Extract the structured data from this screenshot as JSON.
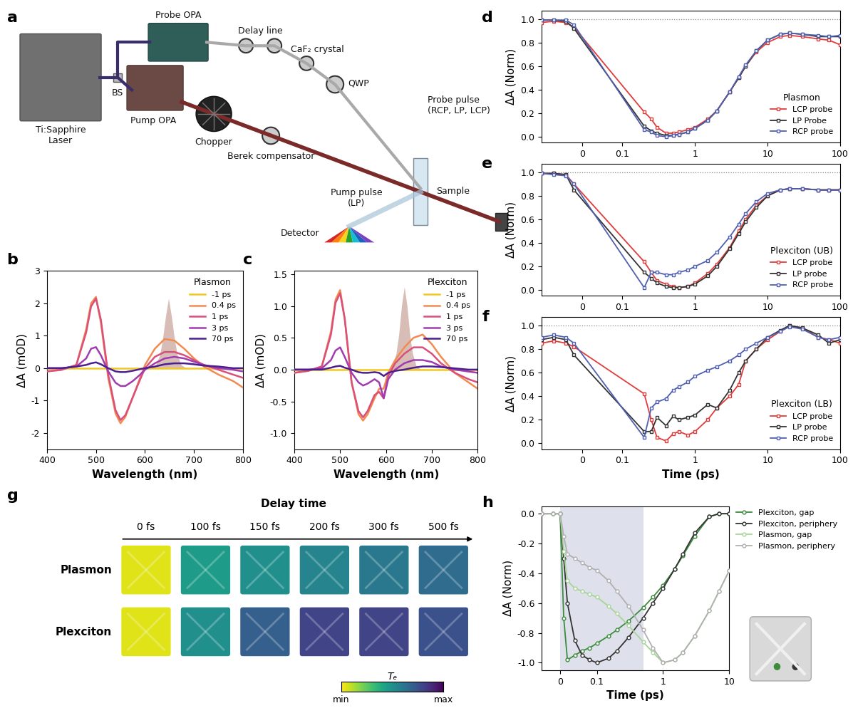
{
  "diagram": {
    "panel": "a",
    "nodes": [
      "Ti:Sapphire\nLaser",
      "BS",
      "Probe OPA",
      "Pump OPA",
      "Delay line",
      "CaF₂ crystal",
      "QWP",
      "Chopper",
      "Berek compensator",
      "Sample",
      "Detector",
      "Probe pulse\n(RCP, LP, LCP)",
      "Pump pulse\n(LP)"
    ]
  },
  "chart_data": [
    {
      "panel": "b",
      "type": "line",
      "title": "Plasmon",
      "xlabel": "Wavelength (nm)",
      "ylabel": "ΔA (mOD)",
      "x": [
        400,
        430,
        460,
        480,
        490,
        500,
        510,
        525,
        540,
        550,
        560,
        575,
        590,
        600,
        620,
        640,
        660,
        680,
        700,
        720,
        750,
        780,
        800
      ],
      "series": [
        {
          "name": "-1 ps",
          "color": "#f2c81e",
          "values": [
            0,
            0,
            0,
            0,
            0,
            0,
            0,
            0,
            0,
            0,
            0,
            0,
            0,
            0,
            0,
            0,
            0,
            0,
            0,
            0,
            0,
            0,
            0
          ]
        },
        {
          "name": "0.4 ps",
          "color": "#f28b50",
          "values": [
            -0.1,
            -0.05,
            0.1,
            1.2,
            2.0,
            2.2,
            1.4,
            -0.3,
            -1.4,
            -1.7,
            -1.5,
            -0.9,
            -0.3,
            0.1,
            0.6,
            0.9,
            0.85,
            0.6,
            0.3,
            0.05,
            -0.2,
            -0.4,
            -0.6
          ]
        },
        {
          "name": "1 ps",
          "color": "#d9507a",
          "values": [
            -0.1,
            -0.05,
            0.1,
            1.1,
            1.9,
            2.15,
            1.5,
            -0.2,
            -1.3,
            -1.6,
            -1.45,
            -0.9,
            -0.35,
            0.0,
            0.35,
            0.5,
            0.5,
            0.4,
            0.25,
            0.1,
            -0.05,
            -0.2,
            -0.3
          ]
        },
        {
          "name": "3 ps",
          "color": "#a03cb0",
          "values": [
            0,
            0,
            0.05,
            0.3,
            0.6,
            0.65,
            0.4,
            -0.1,
            -0.45,
            -0.55,
            -0.55,
            -0.4,
            -0.2,
            -0.05,
            0.15,
            0.3,
            0.35,
            0.3,
            0.2,
            0.1,
            0.0,
            -0.05,
            -0.1
          ]
        },
        {
          "name": "70 ps",
          "color": "#4b1f8f",
          "values": [
            0,
            0,
            0.05,
            0.1,
            0.15,
            0.18,
            0.12,
            0.0,
            -0.1,
            -0.12,
            -0.12,
            -0.08,
            -0.03,
            0.0,
            0.05,
            0.12,
            0.15,
            0.15,
            0.12,
            0.08,
            0.05,
            0.0,
            0.0
          ]
        }
      ],
      "pump": {
        "x": [
          612,
          622,
          630,
          636,
          642,
          648,
          654,
          660,
          666,
          674,
          684
        ],
        "values": [
          0,
          0.1,
          0.4,
          0.9,
          1.6,
          2.15,
          1.6,
          0.9,
          0.4,
          0.1,
          0
        ],
        "color": "#b8877a"
      },
      "xlim": [
        400,
        800
      ],
      "ylim": [
        -2.5,
        3
      ],
      "xticks": [
        400,
        500,
        600,
        700,
        800
      ],
      "yticks": [
        -2,
        -1,
        0,
        1,
        2,
        3
      ],
      "legend": "upper right"
    },
    {
      "panel": "c",
      "type": "line",
      "title": "Plexciton",
      "xlabel": "Wavelength (nm)",
      "ylabel": "ΔA (mOD)",
      "x": [
        400,
        430,
        460,
        480,
        490,
        500,
        510,
        525,
        540,
        550,
        560,
        575,
        585,
        595,
        605,
        620,
        640,
        660,
        680,
        700,
        720,
        750,
        780,
        800
      ],
      "series": [
        {
          "name": "-1 ps",
          "color": "#f2c81e",
          "values": [
            0,
            0,
            0,
            0,
            0,
            0,
            0,
            0,
            0,
            0,
            0,
            0,
            0,
            0,
            0,
            0,
            0,
            0,
            0,
            0,
            0,
            0,
            0,
            0
          ]
        },
        {
          "name": "0.4 ps",
          "color": "#f28b50",
          "values": [
            -0.05,
            -0.02,
            0.05,
            0.6,
            1.1,
            1.25,
            0.8,
            -0.2,
            -0.7,
            -0.8,
            -0.7,
            -0.45,
            -0.3,
            -0.3,
            -0.05,
            0.15,
            0.35,
            0.5,
            0.55,
            0.4,
            0.2,
            -0.05,
            -0.2,
            -0.3
          ]
        },
        {
          "name": "1 ps",
          "color": "#d9507a",
          "values": [
            -0.05,
            -0.02,
            0.05,
            0.55,
            1.05,
            1.2,
            0.8,
            -0.2,
            -0.65,
            -0.75,
            -0.65,
            -0.4,
            -0.35,
            -0.45,
            -0.1,
            0.1,
            0.25,
            0.35,
            0.35,
            0.25,
            0.1,
            -0.05,
            -0.15,
            -0.2
          ]
        },
        {
          "name": "3 ps",
          "color": "#a03cb0",
          "values": [
            0,
            0,
            0.02,
            0.15,
            0.3,
            0.35,
            0.2,
            -0.05,
            -0.2,
            -0.25,
            -0.22,
            -0.15,
            -0.2,
            -0.45,
            -0.15,
            0.0,
            0.1,
            0.15,
            0.15,
            0.12,
            0.05,
            0.0,
            -0.03,
            -0.05
          ]
        },
        {
          "name": "70 ps",
          "color": "#4b1f8f",
          "values": [
            0,
            0,
            0.0,
            0.03,
            0.05,
            0.06,
            0.03,
            0.0,
            -0.04,
            -0.05,
            -0.05,
            -0.04,
            -0.05,
            -0.1,
            -0.05,
            -0.02,
            0.0,
            0.03,
            0.05,
            0.05,
            0.04,
            0.02,
            0.0,
            0.0
          ]
        }
      ],
      "pump": {
        "x": [
          604,
          614,
          622,
          628,
          634,
          640,
          646,
          652,
          658,
          666,
          676
        ],
        "values": [
          0,
          0.06,
          0.25,
          0.55,
          1.0,
          1.3,
          1.0,
          0.55,
          0.25,
          0.06,
          0
        ],
        "color": "#b8877a"
      },
      "xlim": [
        400,
        800
      ],
      "ylim": [
        -1.25,
        1.55
      ],
      "xticks": [
        400,
        500,
        600,
        700,
        800
      ],
      "yticks": [
        -1.0,
        -0.5,
        0.0,
        0.5,
        1.0,
        1.5
      ],
      "legend": "upper right"
    },
    {
      "panel": "d",
      "type": "line",
      "title": "Plasmon",
      "ylabel": "ΔA (Norm)",
      "log": "x",
      "marker": "square",
      "hline": 1.0,
      "x": [
        -0.1,
        -0.07,
        -0.04,
        -0.02,
        0.2,
        0.25,
        0.3,
        0.4,
        0.5,
        0.6,
        0.8,
        1,
        1.5,
        2,
        3,
        4,
        5,
        7,
        10,
        15,
        20,
        30,
        50,
        70,
        100
      ],
      "series": [
        {
          "name": "LCP probe",
          "color": "#e03c3c",
          "values": [
            0.97,
            0.98,
            0.97,
            0.93,
            0.21,
            0.15,
            0.08,
            0.03,
            0.03,
            0.04,
            0.06,
            0.08,
            0.15,
            0.22,
            0.38,
            0.5,
            0.6,
            0.72,
            0.8,
            0.85,
            0.86,
            0.85,
            0.83,
            0.82,
            0.78
          ]
        },
        {
          "name": "LP Probe",
          "color": "#333333",
          "values": [
            0.99,
            0.99,
            0.98,
            0.92,
            0.09,
            0.05,
            0.03,
            0.01,
            0.01,
            0.02,
            0.04,
            0.07,
            0.14,
            0.22,
            0.38,
            0.5,
            0.6,
            0.73,
            0.82,
            0.87,
            0.88,
            0.87,
            0.85,
            0.85,
            0.85
          ]
        },
        {
          "name": "RCP probe",
          "color": "#5060b0",
          "values": [
            0.99,
            0.99,
            0.99,
            0.95,
            0.06,
            0.04,
            0.01,
            0.0,
            0.01,
            0.02,
            0.04,
            0.07,
            0.14,
            0.22,
            0.38,
            0.51,
            0.61,
            0.73,
            0.82,
            0.87,
            0.88,
            0.87,
            0.86,
            0.85,
            0.86
          ]
        }
      ],
      "xlim": [
        -0.1,
        100
      ],
      "ylim": [
        -0.05,
        1.07
      ],
      "xticks": [
        0,
        0.1,
        1,
        10,
        100
      ],
      "yticks": [
        0.0,
        0.2,
        0.4,
        0.6,
        0.8,
        1.0
      ],
      "legend": "lower right"
    },
    {
      "panel": "e",
      "type": "line",
      "title": "Plexciton (UB)",
      "ylabel": "ΔA (Norm)",
      "log": "x",
      "marker": "square",
      "hline": 1.0,
      "x": [
        -0.1,
        -0.07,
        -0.04,
        -0.02,
        0.2,
        0.25,
        0.3,
        0.4,
        0.5,
        0.6,
        0.8,
        1,
        1.5,
        2,
        3,
        4,
        5,
        7,
        10,
        15,
        20,
        30,
        50,
        70,
        100
      ],
      "series": [
        {
          "name": "LCP probe",
          "color": "#e03c3c",
          "values": [
            0.99,
            0.99,
            0.98,
            0.9,
            0.24,
            0.15,
            0.08,
            0.05,
            0.03,
            0.02,
            0.03,
            0.06,
            0.14,
            0.22,
            0.36,
            0.5,
            0.6,
            0.72,
            0.8,
            0.85,
            0.86,
            0.86,
            0.85,
            0.85,
            0.85
          ]
        },
        {
          "name": "LP probe",
          "color": "#333333",
          "values": [
            0.99,
            0.99,
            0.98,
            0.85,
            0.15,
            0.1,
            0.06,
            0.03,
            0.02,
            0.02,
            0.03,
            0.05,
            0.12,
            0.2,
            0.35,
            0.48,
            0.58,
            0.7,
            0.8,
            0.85,
            0.86,
            0.86,
            0.85,
            0.85,
            0.85
          ]
        },
        {
          "name": "RCP probe",
          "color": "#5060b0",
          "values": [
            0.99,
            0.98,
            0.97,
            0.9,
            0.02,
            0.15,
            0.15,
            0.13,
            0.13,
            0.15,
            0.17,
            0.2,
            0.25,
            0.32,
            0.45,
            0.56,
            0.65,
            0.75,
            0.82,
            0.85,
            0.86,
            0.86,
            0.85,
            0.85,
            0.85
          ]
        }
      ],
      "xlim": [
        -0.1,
        100
      ],
      "ylim": [
        -0.05,
        1.07
      ],
      "xticks": [
        0,
        0.1,
        1,
        10,
        100
      ],
      "yticks": [
        0.0,
        0.2,
        0.4,
        0.6,
        0.8,
        1.0
      ],
      "legend": "lower right"
    },
    {
      "panel": "f",
      "type": "line",
      "title": "Plexciton (LB)",
      "xlabel": "Time (ps)",
      "ylabel": "ΔA (Norm)",
      "log": "x",
      "marker": "square",
      "hline": 1.0,
      "x": [
        -0.1,
        -0.07,
        -0.04,
        -0.02,
        0.2,
        0.25,
        0.3,
        0.4,
        0.5,
        0.6,
        0.8,
        1,
        1.5,
        2,
        3,
        4,
        5,
        7,
        10,
        15,
        20,
        30,
        50,
        70,
        100
      ],
      "series": [
        {
          "name": "LCP probe",
          "color": "#e03c3c",
          "values": [
            0.85,
            0.87,
            0.85,
            0.82,
            0.42,
            0.2,
            0.05,
            0.02,
            0.08,
            0.1,
            0.07,
            0.1,
            0.2,
            0.3,
            0.4,
            0.5,
            0.7,
            0.8,
            0.88,
            0.95,
            1.0,
            0.98,
            0.9,
            0.88,
            0.85
          ]
        },
        {
          "name": "LP probe",
          "color": "#333333",
          "values": [
            0.88,
            0.9,
            0.88,
            0.75,
            0.1,
            0.1,
            0.22,
            0.15,
            0.23,
            0.2,
            0.22,
            0.24,
            0.33,
            0.3,
            0.45,
            0.6,
            0.7,
            0.8,
            0.9,
            0.96,
            1.0,
            0.98,
            0.92,
            0.85,
            0.88
          ]
        },
        {
          "name": "RCP probe",
          "color": "#5060b0",
          "values": [
            0.9,
            0.92,
            0.9,
            0.85,
            0.05,
            0.3,
            0.35,
            0.38,
            0.45,
            0.48,
            0.52,
            0.57,
            0.62,
            0.65,
            0.7,
            0.75,
            0.8,
            0.85,
            0.9,
            0.95,
            0.99,
            0.97,
            0.9,
            0.88,
            0.9
          ]
        }
      ],
      "xlim": [
        -0.1,
        100
      ],
      "ylim": [
        -0.05,
        1.07
      ],
      "xticks": [
        0,
        0.1,
        1,
        10,
        100
      ],
      "yticks": [
        0.0,
        0.2,
        0.4,
        0.6,
        0.8,
        1.0
      ],
      "legend": "lower right"
    },
    {
      "panel": "h",
      "type": "line",
      "xlabel": "Time (ps)",
      "ylabel": "ΔA (Norm)",
      "log": "x",
      "marker": "circle",
      "shaded_range": [
        0,
        0.5
      ],
      "x": [
        -0.05,
        -0.02,
        0,
        0.01,
        0.02,
        0.04,
        0.06,
        0.08,
        0.1,
        0.15,
        0.2,
        0.3,
        0.5,
        0.7,
        1,
        1.5,
        2,
        3,
        5,
        7,
        10
      ],
      "series": [
        {
          "name": "Plexciton, gap",
          "color": "#3c8c3c",
          "values": [
            0,
            0,
            0,
            -0.7,
            -0.98,
            -0.95,
            -0.92,
            -0.9,
            -0.87,
            -0.82,
            -0.78,
            -0.72,
            -0.63,
            -0.56,
            -0.48,
            -0.37,
            -0.28,
            -0.15,
            -0.02,
            0,
            0
          ]
        },
        {
          "name": "Plexciton, periphery",
          "color": "#333333",
          "values": [
            0,
            0,
            0,
            -0.3,
            -0.6,
            -0.85,
            -0.95,
            -0.98,
            -1.0,
            -0.97,
            -0.92,
            -0.83,
            -0.7,
            -0.6,
            -0.5,
            -0.37,
            -0.27,
            -0.13,
            -0.02,
            0,
            0
          ]
        },
        {
          "name": "Plasmon, gap",
          "color": "#a8d49a",
          "values": [
            0,
            0,
            0,
            -0.25,
            -0.45,
            -0.5,
            -0.52,
            -0.54,
            -0.56,
            -0.62,
            -0.67,
            -0.75,
            -0.86,
            -0.93,
            -1.0,
            -0.98,
            -0.93,
            -0.82,
            -0.65,
            -0.52,
            -0.38
          ]
        },
        {
          "name": "Plasmon, periphery",
          "color": "#b0b0b0",
          "values": [
            0,
            0,
            0,
            -0.15,
            -0.27,
            -0.3,
            -0.33,
            -0.36,
            -0.38,
            -0.45,
            -0.52,
            -0.62,
            -0.78,
            -0.9,
            -1.0,
            -0.98,
            -0.93,
            -0.82,
            -0.65,
            -0.52,
            -0.38
          ]
        }
      ],
      "xlim": [
        -0.05,
        10
      ],
      "ylim": [
        -1.05,
        0.05
      ],
      "xticks": [
        0,
        0.1,
        1,
        10
      ],
      "yticks": [
        -1.0,
        -0.8,
        -0.6,
        -0.4,
        -0.2,
        0.0
      ],
      "legend": "right"
    }
  ],
  "image_grid": {
    "panel": "g",
    "title": "Delay time",
    "columns": [
      "0 fs",
      "100 fs",
      "150 fs",
      "200 fs",
      "300 fs",
      "500 fs"
    ],
    "rows": [
      {
        "name": "Plasmon",
        "values": [
          0.05,
          0.45,
          0.5,
          0.55,
          0.6,
          0.65
        ]
      },
      {
        "name": "Plexciton",
        "values": [
          0.05,
          0.5,
          0.7,
          0.8,
          0.8,
          0.75
        ]
      }
    ],
    "colorbar": {
      "label": "Tₑ",
      "range": [
        0,
        1
      ],
      "ticks": [
        {
          "value": 0,
          "label": "min"
        },
        {
          "value": 1,
          "label": "max"
        }
      ]
    }
  }
}
